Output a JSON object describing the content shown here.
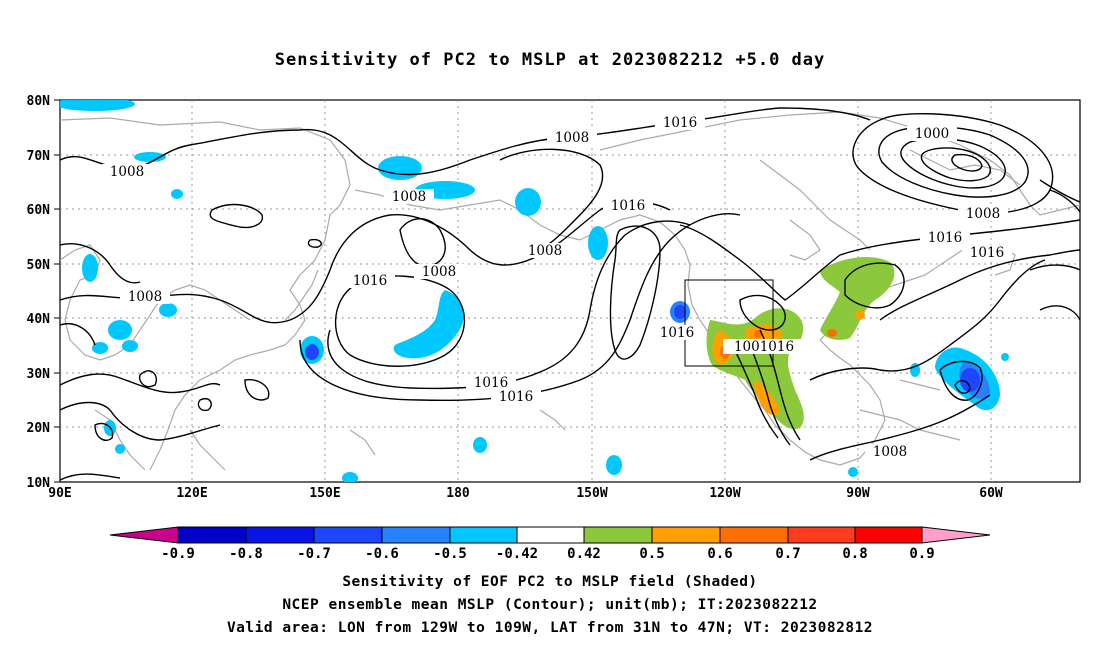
{
  "title": "Sensitivity of PC2 to MSLP at 2023082212 +5.0 day",
  "map": {
    "lon_labels": [
      "90E",
      "120E",
      "150E",
      "180",
      "150W",
      "120W",
      "90W",
      "60W"
    ],
    "lat_labels": [
      "80N",
      "70N",
      "60N",
      "50N",
      "40N",
      "30N",
      "20N",
      "10N"
    ],
    "contour_labels": [
      "1016",
      "1008",
      "1000",
      "1008",
      "1016",
      "1016",
      "1008",
      "1016",
      "1008",
      "1008",
      "1016",
      "1008",
      "1008",
      "1016",
      "1016",
      "1016",
      "1001016",
      "1008"
    ],
    "valid_box": {
      "lon_from": "129W",
      "lon_to": "109W",
      "lat_from": "31N",
      "lat_to": "47N"
    }
  },
  "colorbar": {
    "labels": [
      "-0.9",
      "-0.8",
      "-0.7",
      "-0.6",
      "-0.5",
      "-0.42",
      "0.42",
      "0.5",
      "0.6",
      "0.7",
      "0.8",
      "0.9"
    ],
    "colors": {
      "below_min": "#c8008c",
      "neg_09_08": "#0000c8",
      "neg_08_07": "#0a14e6",
      "neg_07_06": "#1e46ff",
      "neg_06_05": "#2882ff",
      "neg_05_042": "#00c8ff",
      "neutral": "#ffffff",
      "pos_042_05": "#8cc83c",
      "pos_05_06": "#ffa000",
      "pos_06_07": "#ff6e00",
      "pos_07_08": "#ff3c1e",
      "pos_08_09": "#ff0000",
      "above_max": "#ffa0c8"
    }
  },
  "captions": {
    "line1": "Sensitivity of EOF PC2 to MSLP field (Shaded)",
    "line2": "NCEP ensemble mean MSLP (Contour); unit(mb); IT:2023082212",
    "line3": "Valid area: LON from 129W to 109W, LAT from 31N to 47N; VT: 2023082812"
  }
}
